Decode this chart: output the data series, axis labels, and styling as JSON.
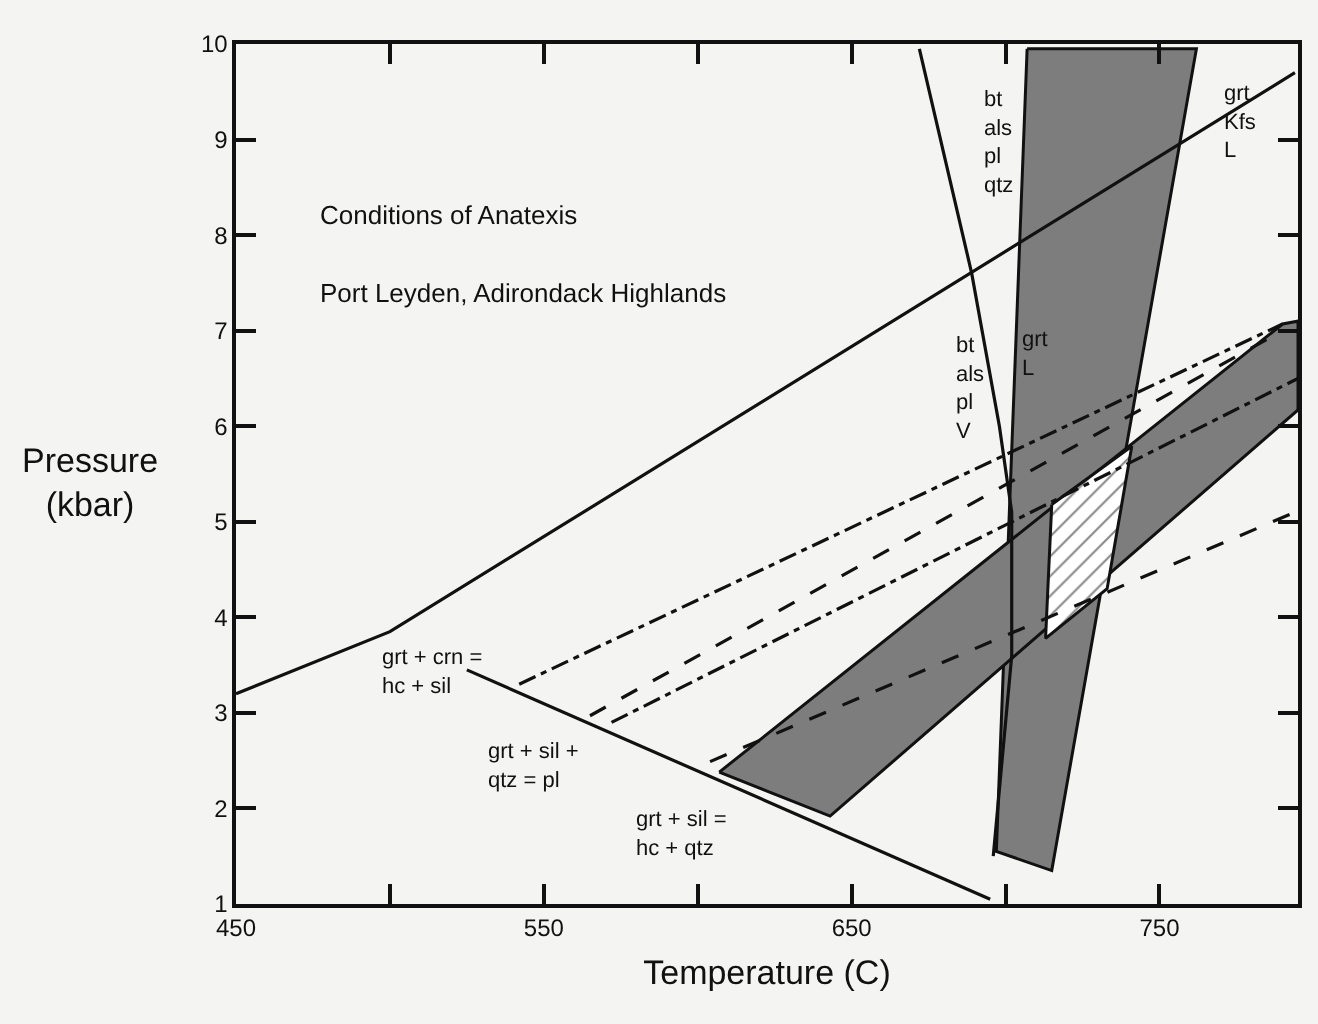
{
  "chart_data": {
    "type": "line",
    "title": "Conditions of Anatexis",
    "subtitle": "Port Leyden, Adirondack Highlands",
    "xlabel": "Temperature (C)",
    "ylabel": "Pressure\n(kbar)",
    "xlim": [
      450,
      795
    ],
    "ylim": [
      1,
      10
    ],
    "xticks": [
      450,
      {
        "value": 500,
        "label": null
      },
      550,
      {
        "value": 600,
        "label": null
      },
      650,
      {
        "value": 700,
        "label": null
      },
      750
    ],
    "yticks": [
      1,
      2,
      3,
      4,
      5,
      6,
      7,
      8,
      9,
      10
    ],
    "grid": false,
    "marker": "none",
    "series": [
      {
        "type": "area",
        "color": "#7d7d7d",
        "x": [
          707,
          762,
          715,
          697,
          707
        ],
        "values": [
          9.95,
          9.95,
          1.35,
          1.55,
          9.95
        ]
      },
      {
        "type": "area",
        "color": "#7d7d7d",
        "x": [
          607,
          790,
          795,
          795,
          643,
          607
        ],
        "values": [
          2.38,
          7.07,
          7.1,
          6.17,
          1.92,
          2.38
        ]
      },
      {
        "type": "area",
        "color": "#ffffff",
        "x": [
          715,
          741,
          733,
          713,
          715
        ],
        "values": [
          5.18,
          5.79,
          4.3,
          3.78,
          5.18
        ]
      },
      {
        "color": "#111111",
        "line_style": "solid",
        "x": [
          450,
          500,
          794
        ],
        "values": [
          3.2,
          3.85,
          9.7
        ]
      },
      {
        "color": "#111111",
        "line_style": "solid",
        "x": [
          525,
          695
        ],
        "values": [
          3.45,
          1.05
        ]
      },
      {
        "color": "#111111",
        "line_style": "solid",
        "x": [
          672,
          689,
          698,
          702,
          702,
          696
        ],
        "values": [
          9.95,
          7.6,
          6.0,
          5.1,
          3.6,
          1.5
        ]
      },
      {
        "color": "#111111",
        "line_style": "dashdot",
        "x": [
          542,
          790
        ],
        "values": [
          3.3,
          7.07
        ]
      },
      {
        "color": "#111111",
        "line_style": "dashed",
        "x": [
          565,
          790
        ],
        "values": [
          2.97,
          7.0
        ]
      },
      {
        "color": "#111111",
        "line_style": "dashdot",
        "x": [
          572,
          795
        ],
        "values": [
          2.9,
          6.5
        ]
      },
      {
        "color": "#111111",
        "line_style": "dashed",
        "x": [
          604,
          794
        ],
        "values": [
          2.49,
          5.1
        ]
      }
    ],
    "annotations": [
      "bt\nals\npl\nqtz",
      "grt\nKfs\nL",
      "bt\nals\npl\nV",
      "grt\nL",
      "grt + crn =\nhc + sil",
      "grt + sil +\nqtz = pl",
      "grt + sil =\nhc + qtz"
    ]
  }
}
